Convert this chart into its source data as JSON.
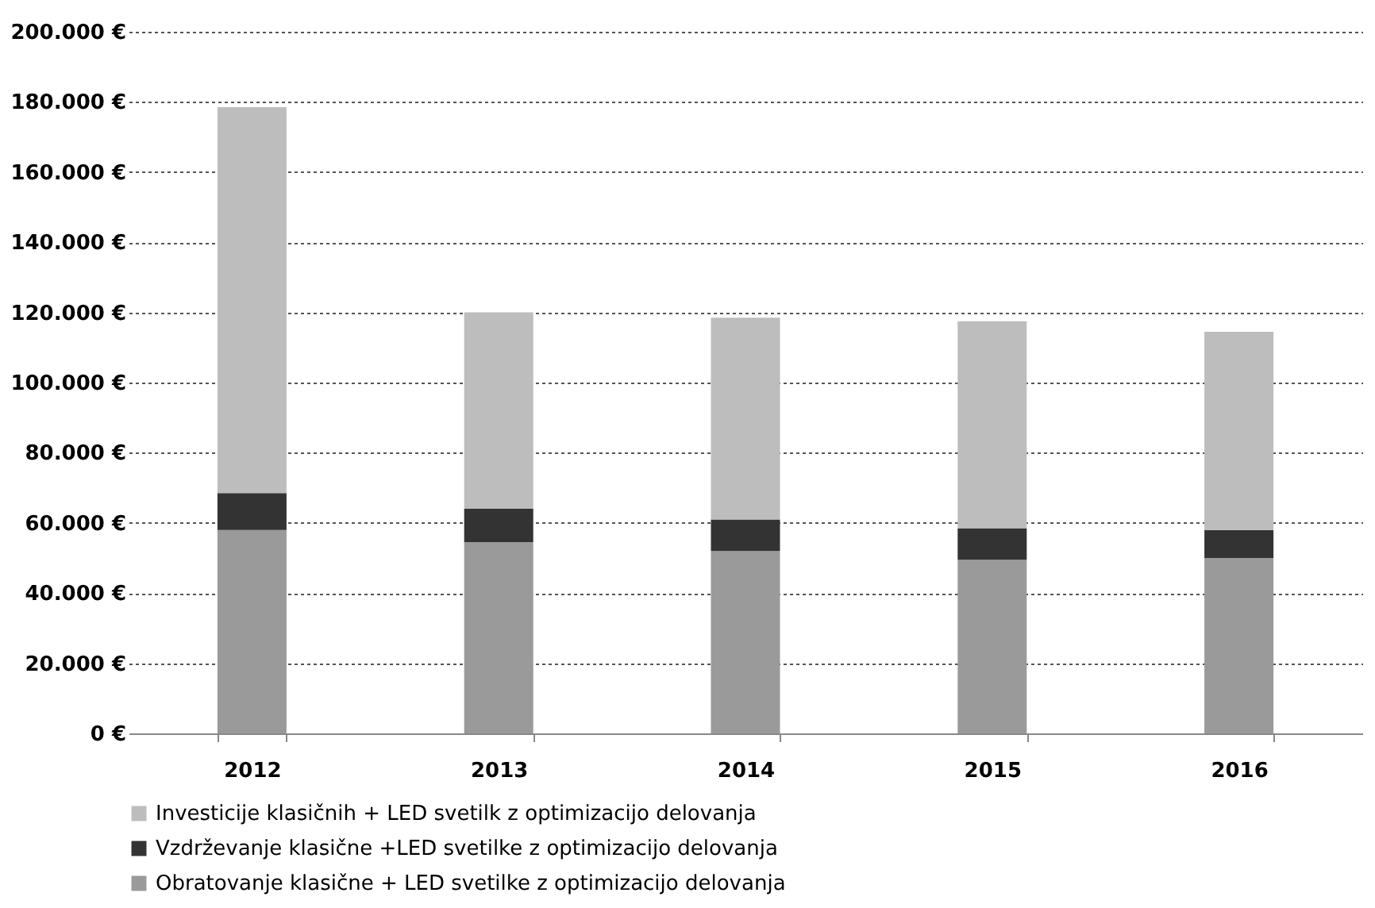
{
  "chart_data": {
    "type": "bar",
    "stacked": true,
    "categories": [
      "2012",
      "2013",
      "2014",
      "2015",
      "2016"
    ],
    "series": [
      {
        "name": "Obratovanje klasične + LED svetilke z optimizacijo delovanja",
        "color": "#9a9a9a",
        "values": [
          58000,
          54500,
          52000,
          49500,
          50000
        ]
      },
      {
        "name": "Vzdrževanje klasične +LED svetilke z optimizacijo delovanja",
        "color": "#333333",
        "values": [
          10500,
          9500,
          9000,
          9000,
          8000
        ]
      },
      {
        "name": "Investicije klasičnih + LED svetilk z optimizacijo delovanja",
        "color": "#bdbdbd",
        "values": [
          110000,
          56000,
          57500,
          59000,
          56500
        ]
      }
    ],
    "ylim": [
      0,
      200000
    ],
    "yticks": [
      {
        "value": 0,
        "label": "0 €"
      },
      {
        "value": 20000,
        "label": "20.000 €"
      },
      {
        "value": 40000,
        "label": "40.000 €"
      },
      {
        "value": 60000,
        "label": "60.000 €"
      },
      {
        "value": 80000,
        "label": "80.000 €"
      },
      {
        "value": 100000,
        "label": "100.000 €"
      },
      {
        "value": 120000,
        "label": "120.000 €"
      },
      {
        "value": 140000,
        "label": "140.000 €"
      },
      {
        "value": 160000,
        "label": "160.000 €"
      },
      {
        "value": 180000,
        "label": "180.000 €"
      },
      {
        "value": 200000,
        "label": "200.000 €"
      }
    ],
    "grid": "y",
    "legend": "bottom"
  }
}
